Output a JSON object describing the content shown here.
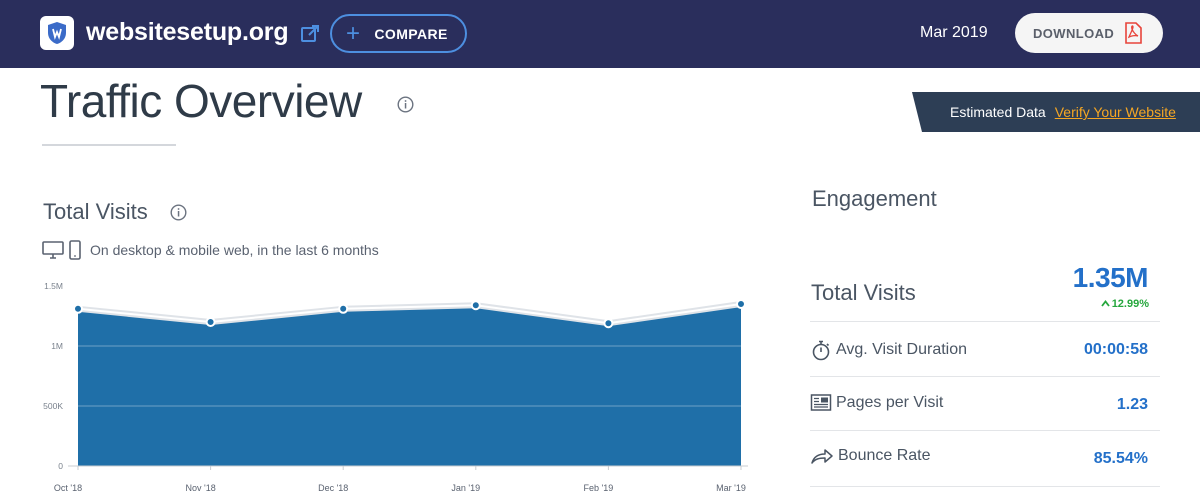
{
  "header": {
    "site_name": "websitesetup.org",
    "compare_label": "COMPARE",
    "date": "Mar 2019",
    "download_label": "DOWNLOAD"
  },
  "overview": {
    "title": "Traffic Overview",
    "estimated_label": "Estimated Data",
    "verify_label": "Verify Your Website"
  },
  "total_visits_section": {
    "title": "Total Visits",
    "subtitle": "On desktop & mobile web, in the last 6 months"
  },
  "chart_data": {
    "type": "area",
    "categories": [
      "Oct '18",
      "Nov '18",
      "Dec '18",
      "Jan '19",
      "Feb '19",
      "Mar '19"
    ],
    "values": [
      1310000,
      1200000,
      1310000,
      1340000,
      1190000,
      1350000
    ],
    "y_ticks": [
      "0",
      "500K",
      "1M",
      "1.5M"
    ],
    "ylim": [
      0,
      1500000
    ],
    "grid": true,
    "color": "#1f6fa8"
  },
  "engagement": {
    "title": "Engagement",
    "total_visits_label": "Total Visits",
    "total_visits_value": "1.35M",
    "total_visits_change": "12.99%",
    "metrics": [
      {
        "label": "Avg. Visit Duration",
        "value": "00:00:58",
        "icon": "stopwatch-icon"
      },
      {
        "label": "Pages per Visit",
        "value": "1.23",
        "icon": "pages-icon"
      },
      {
        "label": "Bounce Rate",
        "value": "85.54%",
        "icon": "bounce-arrow-icon"
      }
    ]
  },
  "colors": {
    "header_bg": "#2a2e5c",
    "accent_blue": "#2370c9",
    "chart_fill": "#1f6fa8",
    "positive_green": "#26a73d",
    "verify_orange": "#f5a623"
  }
}
